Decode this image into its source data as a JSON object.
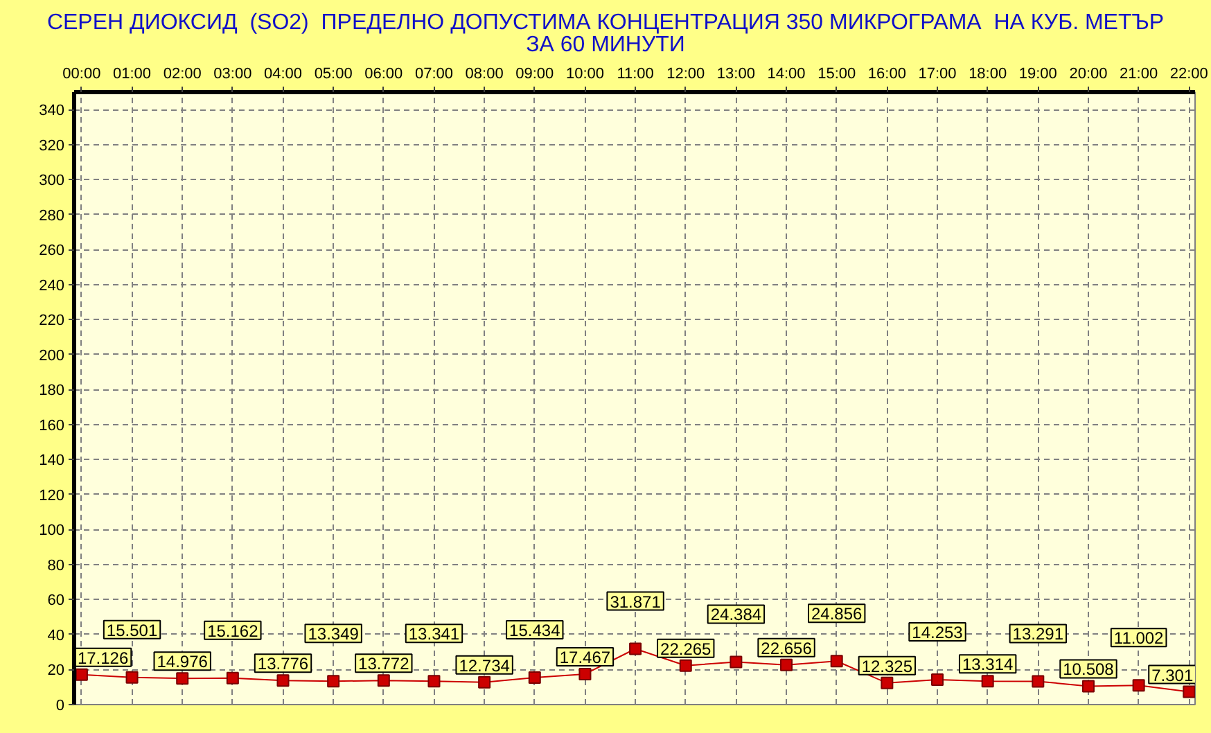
{
  "chart_data": {
    "type": "line",
    "title": "СЕРЕН ДИОКСИД  (SO2)  ПРЕДЕЛНО ДОПУСТИМА КОНЦЕНТРАЦИЯ 350 МИКРОГРАМА  НА КУБ. МЕТЪР\nЗА 60 МИНУТИ",
    "x": [
      0,
      1,
      2,
      3,
      4,
      5,
      6,
      7,
      8,
      9,
      10,
      11,
      12,
      13,
      14,
      15,
      16,
      17,
      18,
      19,
      20,
      21,
      22
    ],
    "xlim": [
      -0.15,
      22.12
    ],
    "xticks": [
      {
        "value": 0,
        "label": "00:00"
      },
      {
        "value": 1,
        "label": "01:00"
      },
      {
        "value": 2,
        "label": "02:00"
      },
      {
        "value": 3,
        "label": "03:00"
      },
      {
        "value": 4,
        "label": "04:00"
      },
      {
        "value": 5,
        "label": "05:00"
      },
      {
        "value": 6,
        "label": "06:00"
      },
      {
        "value": 7,
        "label": "07:00"
      },
      {
        "value": 8,
        "label": "08:00"
      },
      {
        "value": 9,
        "label": "09:00"
      },
      {
        "value": 10,
        "label": "10:00"
      },
      {
        "value": 11,
        "label": "11:00"
      },
      {
        "value": 12,
        "label": "12:00"
      },
      {
        "value": 13,
        "label": "13:00"
      },
      {
        "value": 14,
        "label": "14:00"
      },
      {
        "value": 15,
        "label": "15:00"
      },
      {
        "value": 16,
        "label": "16:00"
      },
      {
        "value": 17,
        "label": "17:00"
      },
      {
        "value": 18,
        "label": "18:00"
      },
      {
        "value": 19,
        "label": "19:00"
      },
      {
        "value": 20,
        "label": "20:00"
      },
      {
        "value": 21,
        "label": "21:00"
      },
      {
        "value": 22,
        "label": "22:00"
      }
    ],
    "ylim": [
      0,
      350
    ],
    "yticks": [
      0,
      20,
      40,
      60,
      80,
      100,
      120,
      140,
      160,
      180,
      200,
      220,
      240,
      260,
      280,
      300,
      320,
      340
    ],
    "series": [
      {
        "color": "#cc0000",
        "values": [
          17.126,
          15.501,
          14.976,
          15.162,
          13.776,
          13.349,
          13.772,
          13.341,
          12.734,
          15.434,
          17.467,
          31.871,
          22.265,
          24.384,
          22.656,
          24.856,
          12.325,
          14.253,
          13.314,
          13.291,
          10.508,
          11.002,
          7.301
        ]
      }
    ],
    "marker": "square",
    "line_style": "solid",
    "grid": true,
    "data_labels": true
  }
}
